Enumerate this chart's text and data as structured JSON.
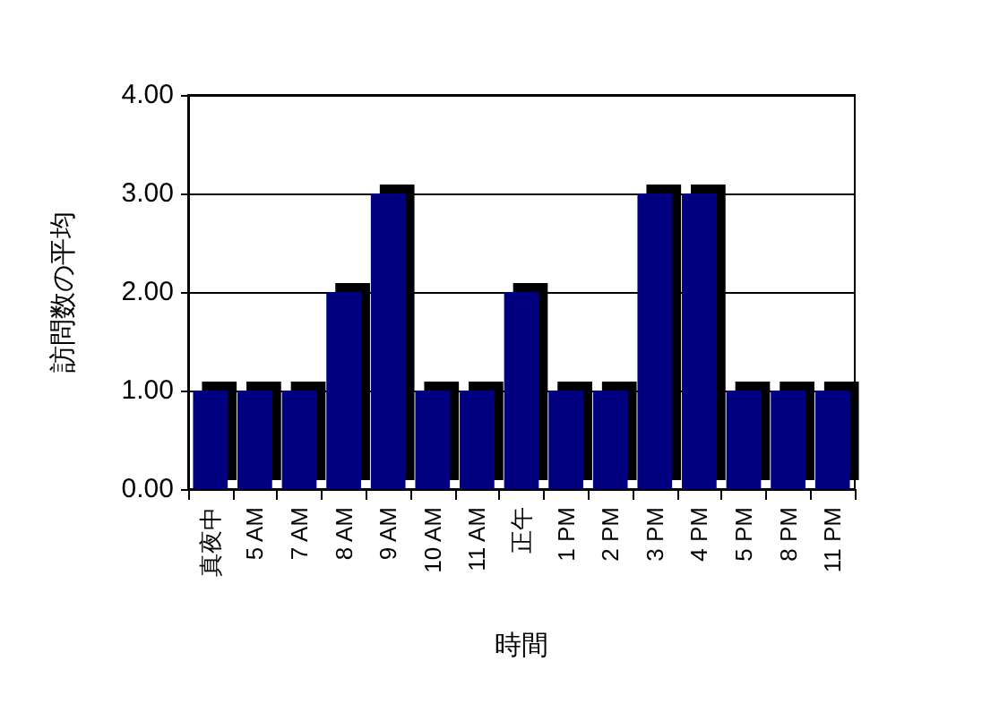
{
  "chart_data": {
    "type": "bar",
    "xlabel": "時間",
    "ylabel": "訪問数の平均",
    "categories": [
      "真夜中",
      "5 AM",
      "7 AM",
      "8 AM",
      "9 AM",
      "10 AM",
      "11 AM",
      "正午",
      "1 PM",
      "2 PM",
      "3 PM",
      "4 PM",
      "5 PM",
      "8 PM",
      "11 PM"
    ],
    "values": [
      1,
      1,
      1,
      2,
      3,
      1,
      1,
      2,
      1,
      1,
      3,
      3,
      1,
      1,
      1
    ],
    "color": "#000080",
    "ylim": [
      0,
      4
    ],
    "yticks": [
      {
        "value": 0,
        "label": "0.00"
      },
      {
        "value": 1,
        "label": "1.00"
      },
      {
        "value": 2,
        "label": "2.00"
      },
      {
        "value": 3,
        "label": "3.00"
      },
      {
        "value": 4,
        "label": "4.00"
      }
    ],
    "grid": "y"
  }
}
